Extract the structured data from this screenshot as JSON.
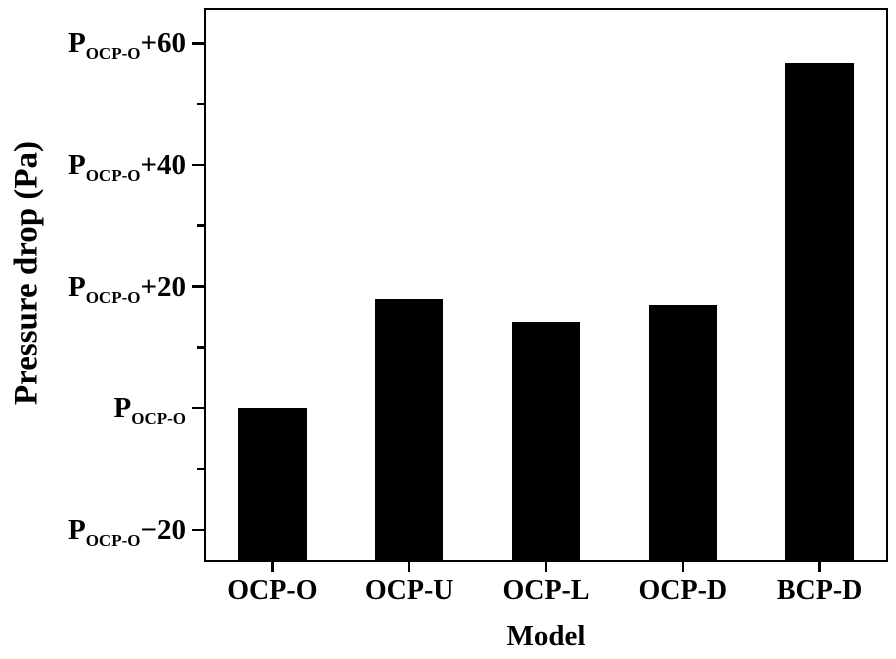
{
  "figure": {
    "background": "#ffffff",
    "text_color": "#000000"
  },
  "chart_data": {
    "type": "bar",
    "title": "",
    "xlabel": "Model",
    "ylabel": "Pressure drop (Pa)",
    "categories": [
      "OCP-O",
      "OCP-U",
      "OCP-L",
      "OCP-D",
      "BCP-D"
    ],
    "values": [
      0,
      17.9,
      14.1,
      16.9,
      56.8
    ],
    "y_reference": "P_OCP-O",
    "ylim": [
      -25.3,
      65.8
    ],
    "bar_color": "#000000",
    "axis_color": "#000000",
    "bar_width_fraction": 0.5,
    "grid": false,
    "legend": null,
    "y_major_ticks": [
      {
        "value": 60,
        "base": "P",
        "sub": "OCP-O",
        "suffix": "+60"
      },
      {
        "value": 40,
        "base": "P",
        "sub": "OCP-O",
        "suffix": "+40"
      },
      {
        "value": 20,
        "base": "P",
        "sub": "OCP-O",
        "suffix": "+20"
      },
      {
        "value": 0,
        "base": "P",
        "sub": "OCP-O",
        "suffix": ""
      },
      {
        "value": -20,
        "base": "P",
        "sub": "OCP-O",
        "suffix": "−20"
      }
    ],
    "y_minor_ticks": [
      50,
      30,
      10,
      -10
    ]
  }
}
